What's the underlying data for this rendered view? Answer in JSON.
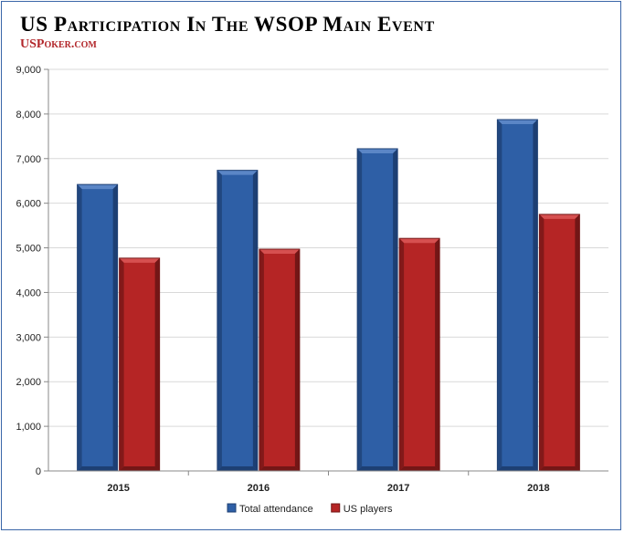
{
  "header": {
    "title": "US Participation In The WSOP Main Event",
    "brand": "USPoker.com"
  },
  "colors": {
    "total": "#2e5fa6",
    "total_dark": "#1d3f73",
    "total_light": "#5b86c6",
    "us": "#b52525",
    "us_dark": "#731616",
    "us_light": "#d65050",
    "grid": "#d9d9d9",
    "axis": "#888888"
  },
  "chart_data": {
    "type": "bar",
    "categories": [
      "2015",
      "2016",
      "2017",
      "2018"
    ],
    "series": [
      {
        "name": "Total attendance",
        "values": [
          6420,
          6737,
          7221,
          7874
        ]
      },
      {
        "name": "US players",
        "values": [
          4769,
          4970,
          5212,
          5750
        ]
      }
    ],
    "ylim": [
      0,
      9000
    ],
    "yticks": [
      "0",
      "1,000",
      "2,000",
      "3,000",
      "4,000",
      "5,000",
      "6,000",
      "7,000",
      "8,000",
      "9,000"
    ],
    "grid": true,
    "legend": "bottom",
    "title": "",
    "xlabel": "",
    "ylabel": ""
  }
}
